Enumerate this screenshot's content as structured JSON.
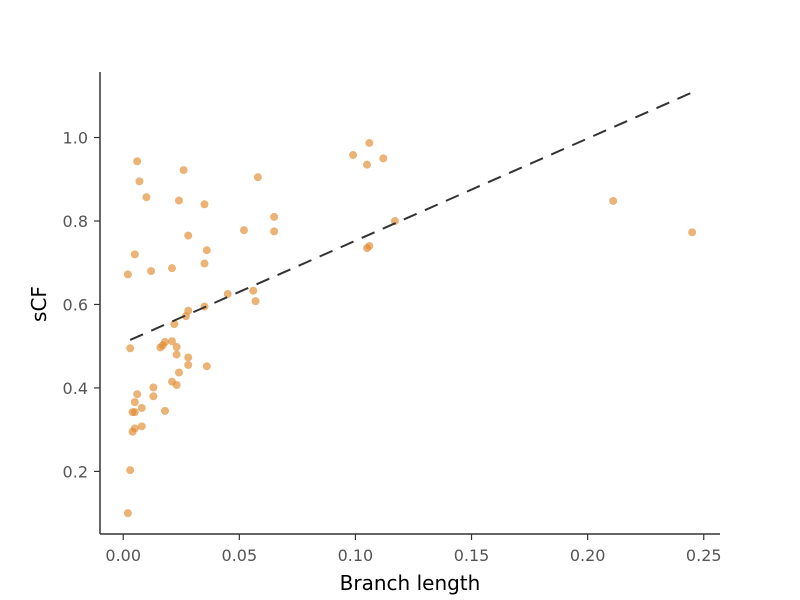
{
  "chart_data": {
    "type": "scatter",
    "title": "",
    "xlabel": "Branch length",
    "ylabel": "sCF",
    "xlim": [
      -0.01,
      0.257
    ],
    "ylim": [
      0.05,
      1.157
    ],
    "xticks": [
      0.0,
      0.05,
      0.1,
      0.15,
      0.2,
      0.25
    ],
    "xtick_labels": [
      "0.00",
      "0.05",
      "0.10",
      "0.15",
      "0.20",
      "0.25"
    ],
    "yticks": [
      0.2,
      0.4,
      0.6,
      0.8,
      1.0
    ],
    "ytick_labels": [
      "0.2",
      "0.4",
      "0.6",
      "0.8",
      "1.0"
    ],
    "grid": false,
    "colors": {
      "points": "#e08a2c",
      "trend": "#333333",
      "axis": "#333333"
    },
    "trendline": {
      "style": "dashed",
      "x": [
        0.003,
        0.245
      ],
      "y": [
        0.515,
        1.108
      ]
    },
    "points": [
      {
        "x": 0.002,
        "y": 0.1
      },
      {
        "x": 0.002,
        "y": 0.672
      },
      {
        "x": 0.003,
        "y": 0.203
      },
      {
        "x": 0.003,
        "y": 0.495
      },
      {
        "x": 0.004,
        "y": 0.342
      },
      {
        "x": 0.004,
        "y": 0.295
      },
      {
        "x": 0.005,
        "y": 0.303
      },
      {
        "x": 0.005,
        "y": 0.72
      },
      {
        "x": 0.005,
        "y": 0.342
      },
      {
        "x": 0.005,
        "y": 0.366
      },
      {
        "x": 0.006,
        "y": 0.385
      },
      {
        "x": 0.006,
        "y": 0.943
      },
      {
        "x": 0.007,
        "y": 0.895
      },
      {
        "x": 0.008,
        "y": 0.352
      },
      {
        "x": 0.008,
        "y": 0.308
      },
      {
        "x": 0.01,
        "y": 0.857
      },
      {
        "x": 0.012,
        "y": 0.68
      },
      {
        "x": 0.013,
        "y": 0.38
      },
      {
        "x": 0.013,
        "y": 0.401
      },
      {
        "x": 0.016,
        "y": 0.497
      },
      {
        "x": 0.017,
        "y": 0.502
      },
      {
        "x": 0.018,
        "y": 0.345
      },
      {
        "x": 0.018,
        "y": 0.51
      },
      {
        "x": 0.021,
        "y": 0.512
      },
      {
        "x": 0.021,
        "y": 0.687
      },
      {
        "x": 0.021,
        "y": 0.415
      },
      {
        "x": 0.022,
        "y": 0.553
      },
      {
        "x": 0.023,
        "y": 0.407
      },
      {
        "x": 0.023,
        "y": 0.498
      },
      {
        "x": 0.023,
        "y": 0.48
      },
      {
        "x": 0.024,
        "y": 0.437
      },
      {
        "x": 0.024,
        "y": 0.849
      },
      {
        "x": 0.026,
        "y": 0.922
      },
      {
        "x": 0.027,
        "y": 0.572
      },
      {
        "x": 0.028,
        "y": 0.455
      },
      {
        "x": 0.028,
        "y": 0.473
      },
      {
        "x": 0.028,
        "y": 0.585
      },
      {
        "x": 0.028,
        "y": 0.765
      },
      {
        "x": 0.035,
        "y": 0.595
      },
      {
        "x": 0.035,
        "y": 0.84
      },
      {
        "x": 0.035,
        "y": 0.698
      },
      {
        "x": 0.036,
        "y": 0.73
      },
      {
        "x": 0.036,
        "y": 0.452
      },
      {
        "x": 0.045,
        "y": 0.625
      },
      {
        "x": 0.052,
        "y": 0.778
      },
      {
        "x": 0.056,
        "y": 0.633
      },
      {
        "x": 0.057,
        "y": 0.608
      },
      {
        "x": 0.058,
        "y": 0.905
      },
      {
        "x": 0.065,
        "y": 0.81
      },
      {
        "x": 0.065,
        "y": 0.775
      },
      {
        "x": 0.099,
        "y": 0.958
      },
      {
        "x": 0.105,
        "y": 0.935
      },
      {
        "x": 0.105,
        "y": 0.735
      },
      {
        "x": 0.106,
        "y": 0.74
      },
      {
        "x": 0.106,
        "y": 0.987
      },
      {
        "x": 0.112,
        "y": 0.95
      },
      {
        "x": 0.117,
        "y": 0.8
      },
      {
        "x": 0.211,
        "y": 0.848
      },
      {
        "x": 0.245,
        "y": 0.773
      }
    ]
  }
}
